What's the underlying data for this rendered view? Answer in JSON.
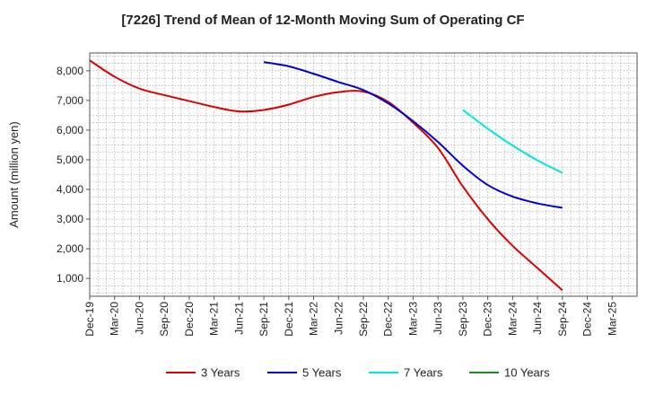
{
  "chart_data": {
    "type": "line",
    "title": "[7226]  Trend of Mean of 12-Month Moving Sum of Operating CF",
    "xlabel": "",
    "ylabel": "Amount (million yen)",
    "ylim": [
      400,
      8600
    ],
    "yticks": [
      1000,
      2000,
      3000,
      4000,
      5000,
      6000,
      7000,
      8000
    ],
    "ytick_labels": [
      "1,000",
      "2,000",
      "3,000",
      "4,000",
      "5,000",
      "6,000",
      "7,000",
      "8,000"
    ],
    "categories": [
      "Dec-19",
      "Mar-20",
      "Jun-20",
      "Sep-20",
      "Dec-20",
      "Mar-21",
      "Jun-21",
      "Sep-21",
      "Dec-21",
      "Mar-22",
      "Jun-22",
      "Sep-22",
      "Dec-22",
      "Mar-23",
      "Jun-23",
      "Sep-23",
      "Dec-23",
      "Mar-24",
      "Jun-24",
      "Sep-24",
      "Dec-24",
      "Mar-25"
    ],
    "x_range_months": [
      0,
      66
    ],
    "grid": true,
    "legend_position": "bottom",
    "series": [
      {
        "name": "3 Years",
        "color": "#dd0000",
        "points": [
          [
            0,
            8350
          ],
          [
            3,
            7800
          ],
          [
            6,
            7400
          ],
          [
            9,
            7180
          ],
          [
            12,
            6980
          ],
          [
            15,
            6780
          ],
          [
            18,
            6630
          ],
          [
            21,
            6680
          ],
          [
            24,
            6860
          ],
          [
            27,
            7120
          ],
          [
            30,
            7280
          ],
          [
            33,
            7300
          ],
          [
            36,
            6950
          ],
          [
            39,
            6250
          ],
          [
            42,
            5400
          ],
          [
            45,
            4100
          ],
          [
            48,
            3000
          ],
          [
            51,
            2100
          ],
          [
            54,
            1350
          ],
          [
            57,
            600
          ]
        ]
      },
      {
        "name": "5 Years",
        "color": "#0000cc",
        "points": [
          [
            21,
            8290
          ],
          [
            24,
            8150
          ],
          [
            27,
            7900
          ],
          [
            30,
            7620
          ],
          [
            33,
            7350
          ],
          [
            36,
            6900
          ],
          [
            39,
            6300
          ],
          [
            42,
            5600
          ],
          [
            45,
            4800
          ],
          [
            48,
            4150
          ],
          [
            51,
            3760
          ],
          [
            54,
            3530
          ],
          [
            57,
            3380
          ]
        ]
      },
      {
        "name": "7 Years",
        "color": "#00e5e5",
        "points": [
          [
            45,
            6680
          ],
          [
            48,
            6050
          ],
          [
            51,
            5480
          ],
          [
            54,
            4980
          ],
          [
            57,
            4560
          ]
        ]
      },
      {
        "name": "10 Years",
        "color": "#228b22",
        "points": []
      }
    ]
  }
}
